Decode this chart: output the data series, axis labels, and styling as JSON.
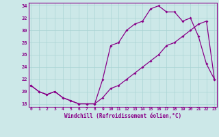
{
  "xlabel": "Windchill (Refroidissement éolien,°C)",
  "background_color": "#cce8e8",
  "line_color": "#880088",
  "hours": [
    0,
    1,
    2,
    3,
    4,
    5,
    6,
    7,
    8,
    9,
    10,
    11,
    12,
    13,
    14,
    15,
    16,
    17,
    18,
    19,
    20,
    21,
    22,
    23
  ],
  "temp": [
    21,
    20,
    19.5,
    20,
    19,
    18.5,
    18,
    18,
    18,
    19,
    20.5,
    21,
    22,
    23,
    24,
    25,
    26,
    27.5,
    28,
    29,
    30,
    31,
    31.5,
    22
  ],
  "windchill": [
    21,
    20,
    19.5,
    20,
    19,
    18.5,
    18,
    18,
    18,
    22,
    27.5,
    28,
    30,
    31,
    31.5,
    33.5,
    34,
    33,
    33,
    31.5,
    32,
    29,
    24.5,
    22
  ],
  "ylim": [
    17.5,
    34.5
  ],
  "yticks": [
    18,
    20,
    22,
    24,
    26,
    28,
    30,
    32,
    34
  ],
  "xlim": [
    -0.3,
    23.3
  ],
  "grid_color": "#aad4d4"
}
